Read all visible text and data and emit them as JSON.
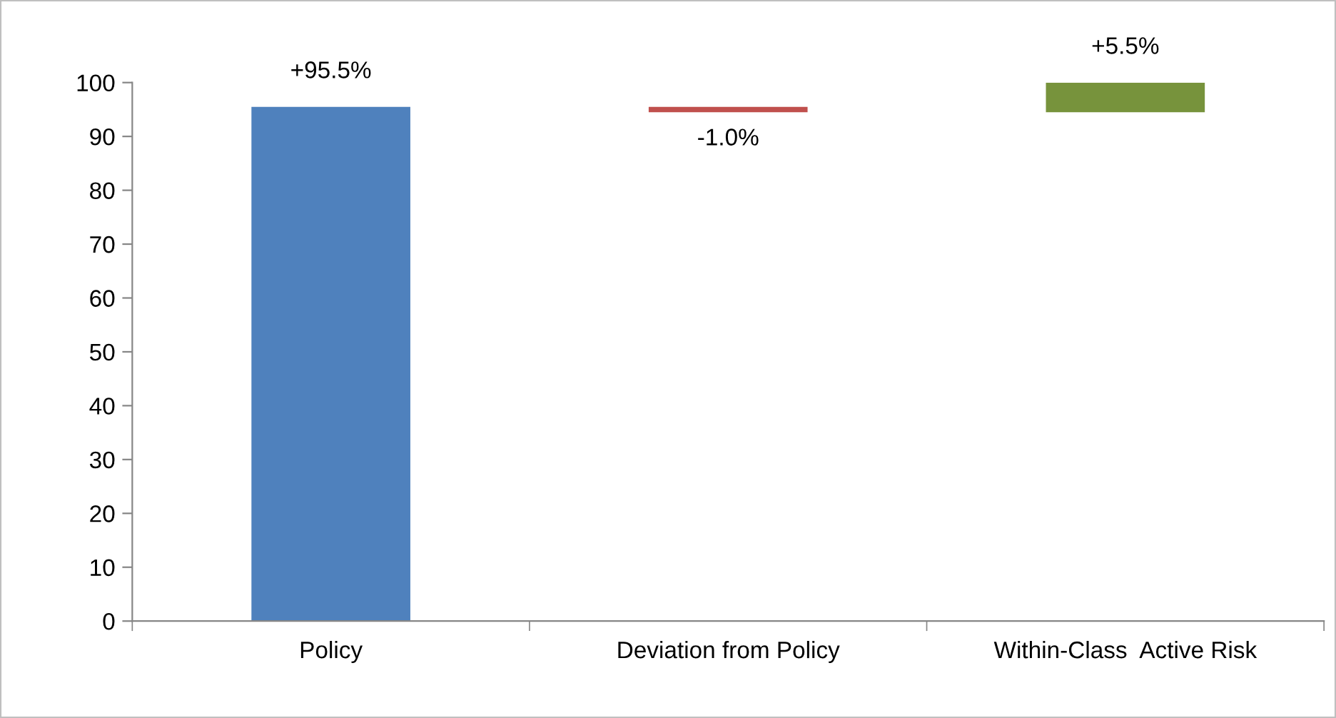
{
  "chart_data": {
    "type": "bar",
    "categories": [
      "Policy",
      "Deviation from Policy",
      "Within-Class  Active Risk"
    ],
    "values": [
      95.5,
      -1.0,
      5.5
    ],
    "base": [
      0,
      95.5,
      94.5
    ],
    "colors": [
      "#4f81bd",
      "#c0504d",
      "#77933c"
    ],
    "value_labels": [
      "+95.5%",
      "-1.0%",
      "+5.5%"
    ],
    "ylim": [
      0,
      100
    ],
    "yticks": [
      0,
      10,
      20,
      30,
      40,
      50,
      60,
      70,
      80,
      90,
      100
    ],
    "grid": false,
    "legend": false
  }
}
